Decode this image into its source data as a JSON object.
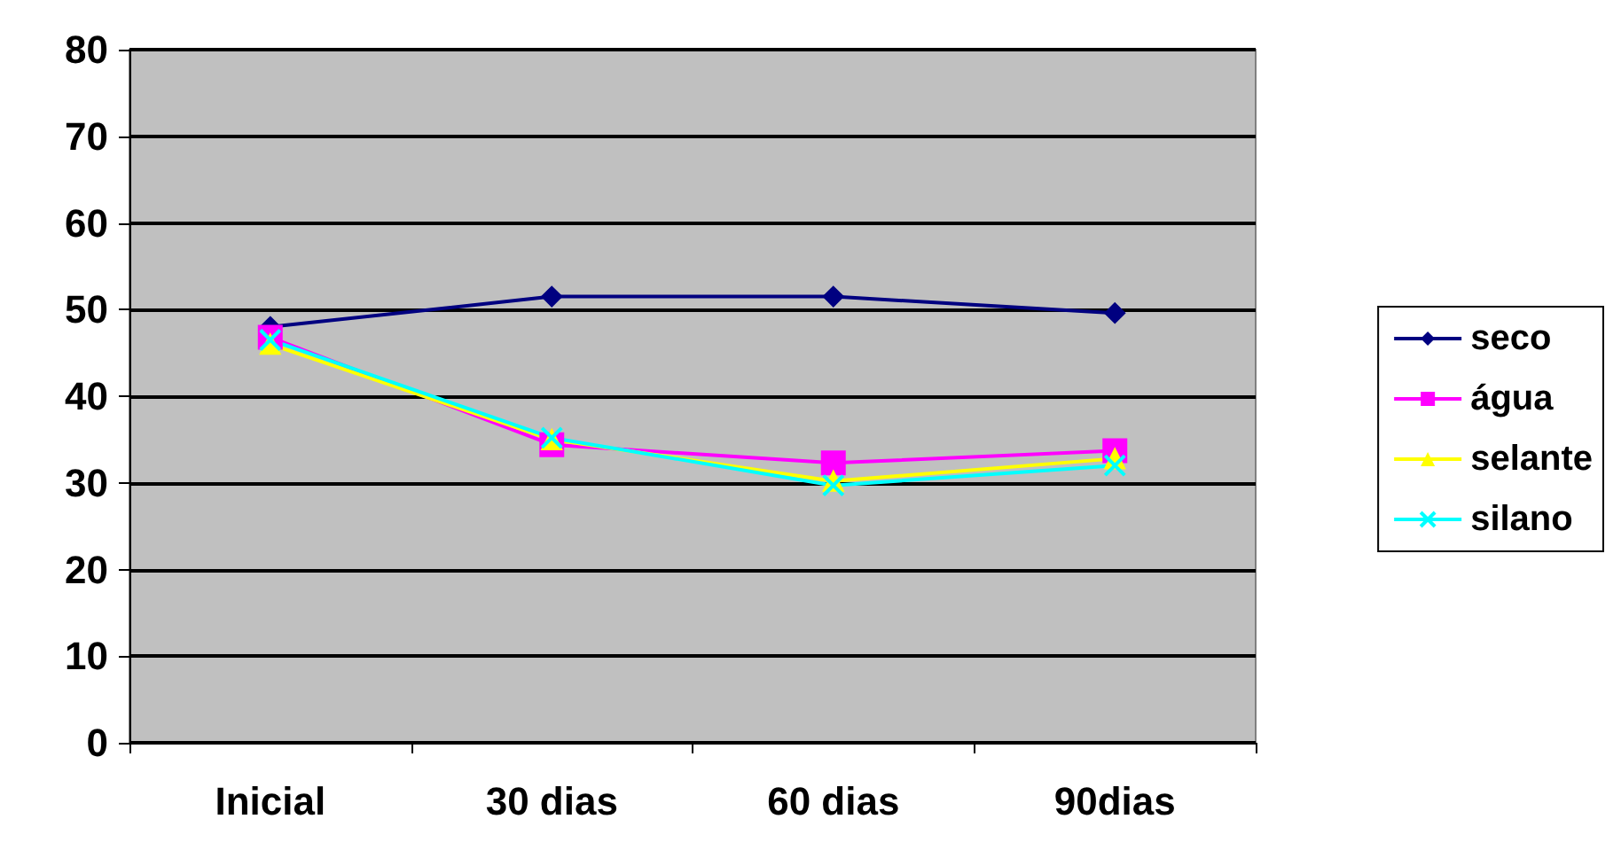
{
  "chart_data": {
    "type": "line",
    "categories": [
      "Inicial",
      "30 dias",
      "60 dias",
      "90dias"
    ],
    "series": [
      {
        "name": "seco",
        "color": "#000080",
        "marker": "diamond",
        "values": [
          48,
          51.5,
          51.5,
          49.6
        ]
      },
      {
        "name": "água",
        "color": "#ff00ff",
        "marker": "square",
        "values": [
          46.8,
          34.4,
          32.3,
          33.7
        ]
      },
      {
        "name": "selante",
        "color": "#ffff00",
        "marker": "triangle",
        "values": [
          46,
          35,
          30.2,
          32.8
        ]
      },
      {
        "name": "silano",
        "color": "#00ffff",
        "marker": "cross",
        "values": [
          46.5,
          35.2,
          29.7,
          32
        ]
      }
    ],
    "ylim": [
      0,
      80
    ],
    "yticks": [
      0,
      10,
      20,
      30,
      40,
      50,
      60,
      70,
      80
    ],
    "grid": "y",
    "legend": "right",
    "line_style": "solid"
  }
}
